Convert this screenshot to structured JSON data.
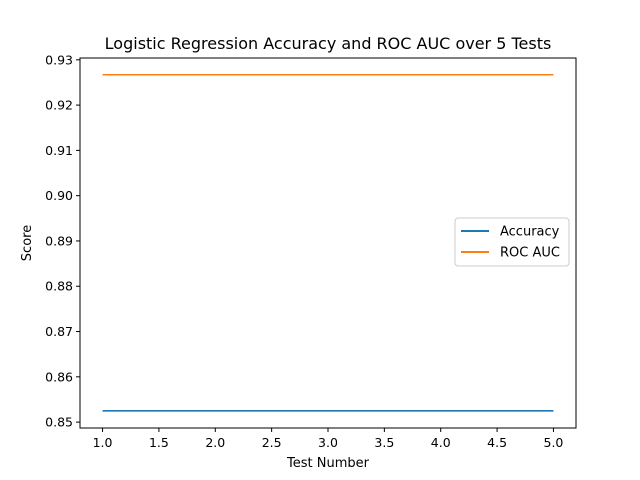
{
  "chart_data": {
    "type": "line",
    "title": "Logistic Regression Accuracy and ROC AUC over 5 Tests",
    "xlabel": "Test Number",
    "ylabel": "Score",
    "x": [
      1,
      2,
      3,
      4,
      5
    ],
    "xlim": [
      0.8,
      5.2
    ],
    "ylim": [
      0.8487,
      0.9304
    ],
    "xticks": [
      1.0,
      1.5,
      2.0,
      2.5,
      3.0,
      3.5,
      4.0,
      4.5,
      5.0
    ],
    "xtick_labels": [
      "1.0",
      "1.5",
      "2.0",
      "2.5",
      "3.0",
      "3.5",
      "4.0",
      "4.5",
      "5.0"
    ],
    "yticks": [
      0.85,
      0.86,
      0.87,
      0.88,
      0.89,
      0.9,
      0.91,
      0.92,
      0.93
    ],
    "ytick_labels": [
      "0.85",
      "0.86",
      "0.87",
      "0.88",
      "0.89",
      "0.90",
      "0.91",
      "0.92",
      "0.93"
    ],
    "grid": false,
    "legend_position": "center-right",
    "series": [
      {
        "name": "Accuracy",
        "color": "#1f77b4",
        "values": [
          0.8525,
          0.8525,
          0.8525,
          0.8525,
          0.8525
        ]
      },
      {
        "name": "ROC AUC",
        "color": "#ff7f0e",
        "values": [
          0.9267,
          0.9267,
          0.9267,
          0.9267,
          0.9267
        ]
      }
    ]
  }
}
